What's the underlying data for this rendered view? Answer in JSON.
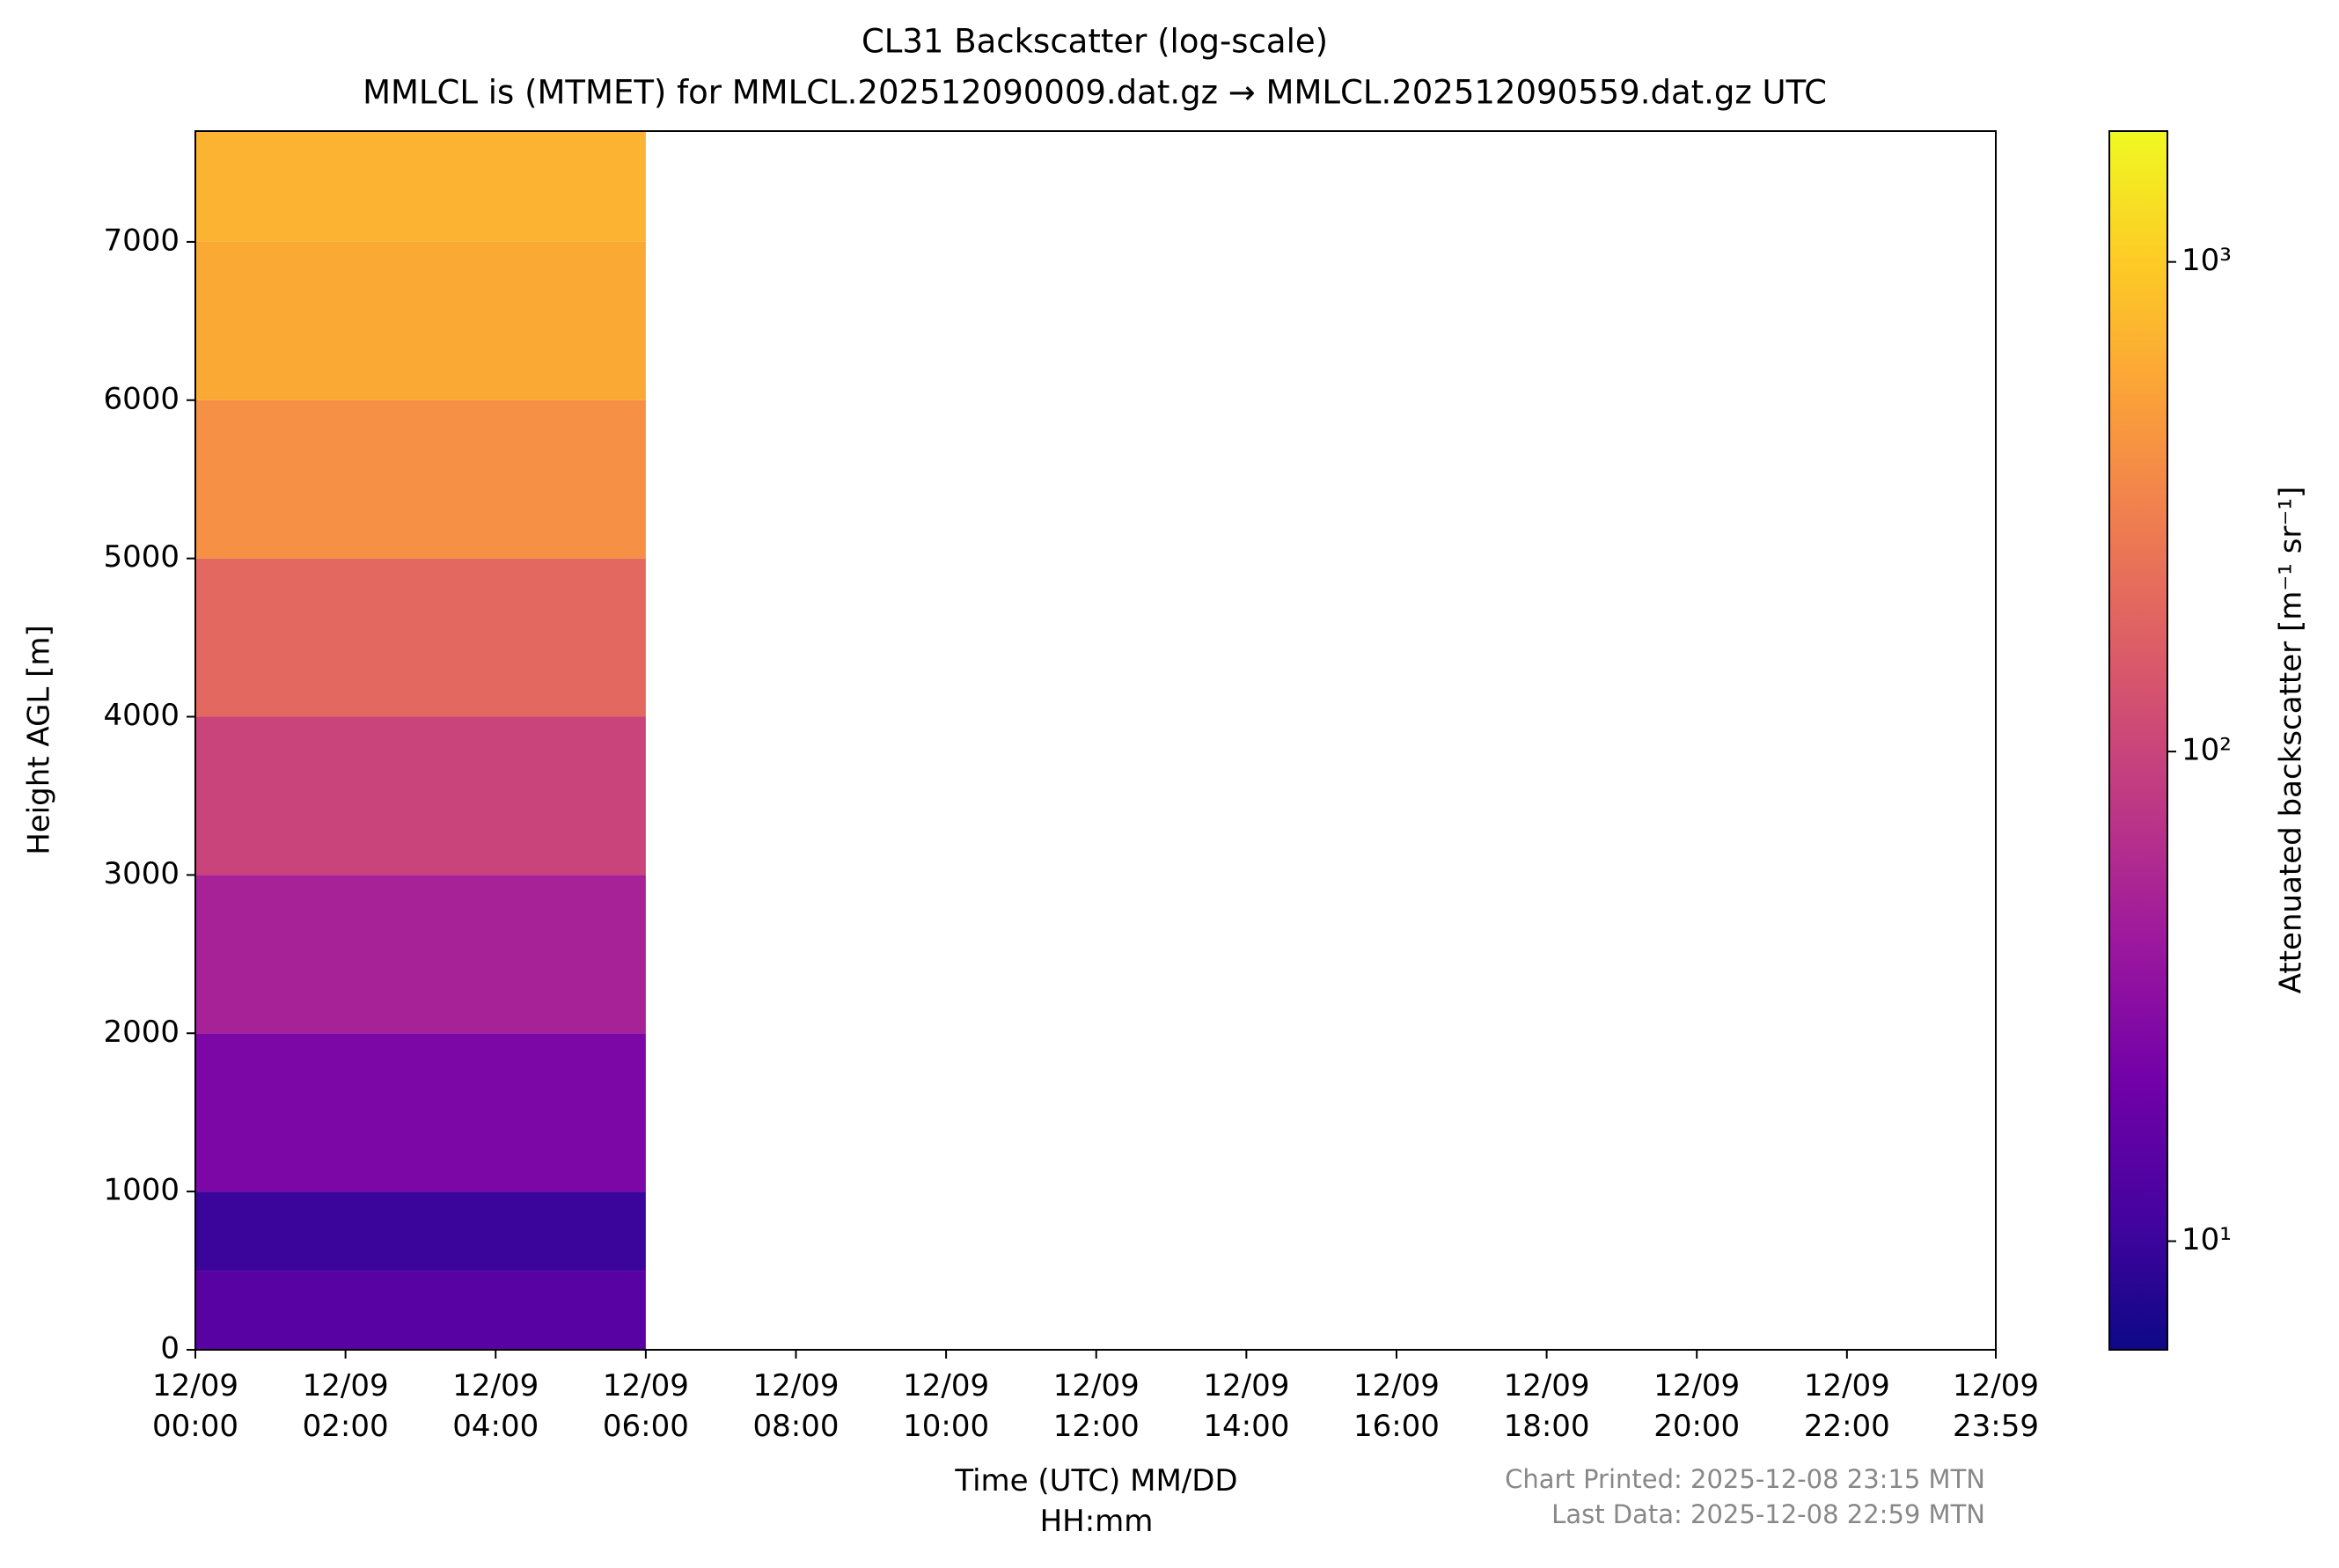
{
  "chart_data": {
    "type": "heatmap",
    "title": "CL31 Backscatter (log-scale)",
    "subtitle": "MMLCL is (MTMET) for MMLCL.202512090009.dat.gz → MMLCL.202512090559.dat.gz UTC",
    "x_label": "Time (UTC) MM/DD\nHH:mm",
    "y_label": "Height AGL [m]",
    "colorbar_label": "Attenuated backscatter [m⁻¹ sr⁻¹]",
    "annotations": [
      "Chart Printed: 2025-12-08 23:15 MTN",
      "Last Data: 2025-12-08 22:59 MTN"
    ],
    "xlim": [
      0,
      23.983
    ],
    "xticks": [
      {
        "value": 0,
        "label": "12/09\n00:00"
      },
      {
        "value": 2,
        "label": "12/09\n02:00"
      },
      {
        "value": 4,
        "label": "12/09\n04:00"
      },
      {
        "value": 6,
        "label": "12/09\n06:00"
      },
      {
        "value": 8,
        "label": "12/09\n08:00"
      },
      {
        "value": 10,
        "label": "12/09\n10:00"
      },
      {
        "value": 12,
        "label": "12/09\n12:00"
      },
      {
        "value": 14,
        "label": "12/09\n14:00"
      },
      {
        "value": 16,
        "label": "12/09\n16:00"
      },
      {
        "value": 18,
        "label": "12/09\n18:00"
      },
      {
        "value": 20,
        "label": "12/09\n20:00"
      },
      {
        "value": 22,
        "label": "12/09\n22:00"
      },
      {
        "value": 23.983,
        "label": "12/09\n23:59"
      }
    ],
    "ylim": [
      0,
      7700
    ],
    "yticks": [
      0,
      1000,
      2000,
      3000,
      4000,
      5000,
      6000,
      7000
    ],
    "x_bins": [
      0,
      6
    ],
    "y_bins": [
      0,
      500,
      1000,
      2000,
      3000,
      4000,
      5000,
      6000,
      7000,
      7700
    ],
    "values": [
      [
        15
      ],
      [
        10
      ],
      [
        25
      ],
      [
        50
      ],
      [
        100
      ],
      [
        200
      ],
      [
        400
      ],
      [
        600
      ],
      [
        700
      ]
    ],
    "zlim": [
      6,
      1850
    ],
    "zscale": "log",
    "zticks": [
      {
        "value": 10,
        "label": "10¹"
      },
      {
        "value": 100,
        "label": "10²"
      },
      {
        "value": 1000,
        "label": "10³"
      }
    ],
    "colormap": [
      "#0d0887",
      "#46039f",
      "#7201a8",
      "#9c179e",
      "#bd3786",
      "#d8576b",
      "#ed7953",
      "#fb9f3a",
      "#fdca26",
      "#f0f921"
    ]
  }
}
